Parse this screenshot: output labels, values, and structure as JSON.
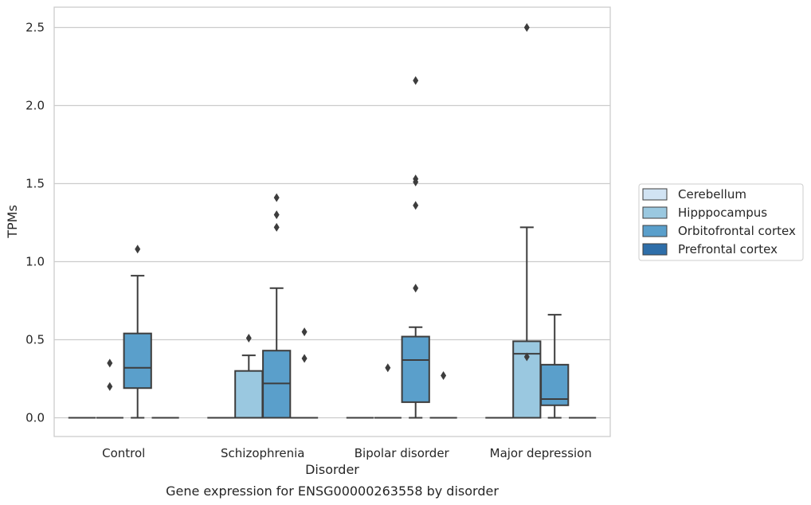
{
  "chart_data": {
    "type": "box",
    "title": "",
    "caption": "Gene expression for ENSG00000263558 by disorder",
    "xlabel": "Disorder",
    "ylabel": "TPMs",
    "ylim": [
      -0.12,
      2.63
    ],
    "yticks": [
      0.0,
      0.5,
      1.0,
      1.5,
      2.0,
      2.5
    ],
    "ytick_labels": [
      "0.0",
      "0.5",
      "1.0",
      "1.5",
      "2.0",
      "2.5"
    ],
    "grid": "horizontal",
    "legend_position": "right",
    "categories": [
      "Control",
      "Schizophrenia",
      "Bipolar disorder",
      "Major depression"
    ],
    "series": [
      {
        "name": "Cerebellum",
        "color": "#d1e3f3",
        "boxes": [
          {
            "min": 0,
            "q1": 0,
            "median": 0,
            "q3": 0,
            "max": 0,
            "outliers": []
          },
          {
            "min": 0,
            "q1": 0,
            "median": 0,
            "q3": 0,
            "max": 0,
            "outliers": []
          },
          {
            "min": 0,
            "q1": 0,
            "median": 0,
            "q3": 0,
            "max": 0,
            "outliers": []
          },
          {
            "min": 0,
            "q1": 0,
            "median": 0,
            "q3": 0,
            "max": 0,
            "outliers": []
          }
        ]
      },
      {
        "name": "Hipppocampus",
        "color": "#9ac8e0",
        "boxes": [
          {
            "min": 0,
            "q1": 0,
            "median": 0,
            "q3": 0,
            "max": 0,
            "outliers": [
              0.35,
              0.2
            ]
          },
          {
            "min": 0,
            "q1": 0,
            "median": 0,
            "q3": 0.3,
            "max": 0.4,
            "outliers": [
              0.51
            ]
          },
          {
            "min": 0,
            "q1": 0,
            "median": 0,
            "q3": 0,
            "max": 0,
            "outliers": [
              0.32
            ]
          },
          {
            "min": 0,
            "q1": 0,
            "median": 0.41,
            "q3": 0.49,
            "max": 1.22,
            "outliers": [
              0.39,
              2.5
            ]
          }
        ]
      },
      {
        "name": "Orbitofrontal cortex",
        "color": "#5a9fcb",
        "boxes": [
          {
            "min": 0,
            "q1": 0.19,
            "median": 0.32,
            "q3": 0.54,
            "max": 0.91,
            "outliers": [
              1.08
            ]
          },
          {
            "min": 0,
            "q1": 0,
            "median": 0.22,
            "q3": 0.43,
            "max": 0.83,
            "outliers": [
              1.41,
              1.3,
              1.22
            ]
          },
          {
            "min": 0,
            "q1": 0.1,
            "median": 0.37,
            "q3": 0.52,
            "max": 0.58,
            "outliers": [
              2.16,
              1.53,
              1.51,
              1.36,
              0.83
            ]
          },
          {
            "min": 0,
            "q1": 0.08,
            "median": 0.12,
            "q3": 0.34,
            "max": 0.66,
            "outliers": []
          }
        ]
      },
      {
        "name": "Prefrontal cortex",
        "color": "#2e6ea9",
        "boxes": [
          {
            "min": 0,
            "q1": 0,
            "median": 0,
            "q3": 0,
            "max": 0,
            "outliers": []
          },
          {
            "min": 0,
            "q1": 0,
            "median": 0,
            "q3": 0,
            "max": 0,
            "outliers": [
              0.55,
              0.38
            ]
          },
          {
            "min": 0,
            "q1": 0,
            "median": 0,
            "q3": 0,
            "max": 0,
            "outliers": [
              0.27
            ]
          },
          {
            "min": 0,
            "q1": 0,
            "median": 0,
            "q3": 0,
            "max": 0,
            "outliers": []
          }
        ]
      }
    ]
  }
}
